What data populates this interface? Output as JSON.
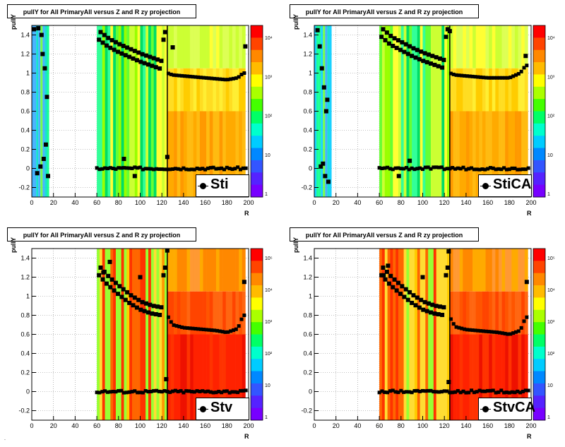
{
  "footer_text": ".",
  "chart_data": [
    {
      "type": "scatter",
      "title": "pullY for All PrimaryAll versus Z and R zy projection",
      "xlabel": "R",
      "ylabel": "pullY",
      "legend": "Sti",
      "xlim": [
        0,
        200
      ],
      "ylim": [
        -0.3,
        1.5
      ],
      "xticks": [
        "0",
        "20",
        "40",
        "60",
        "80",
        "100",
        "120",
        "140",
        "160",
        "180",
        "200"
      ],
      "yticks": [
        "-0.2",
        "0",
        "0.2",
        "0.4",
        "0.6",
        "0.8",
        "1",
        "1.2",
        "1.4"
      ],
      "palette_labels": [
        "1",
        "10",
        "10²",
        "10³",
        "10⁴"
      ],
      "tpc_band": [
        {
          "x": 125,
          "y": 1.0
        },
        {
          "x": 130,
          "y": 0.98
        },
        {
          "x": 140,
          "y": 0.97
        },
        {
          "x": 150,
          "y": 0.96
        },
        {
          "x": 160,
          "y": 0.95
        },
        {
          "x": 170,
          "y": 0.94
        },
        {
          "x": 180,
          "y": 0.93
        },
        {
          "x": 190,
          "y": 0.95
        },
        {
          "x": 195,
          "y": 1.0
        }
      ],
      "upper_band": [
        {
          "x": 62,
          "y": 1.35
        },
        {
          "x": 70,
          "y": 1.28
        },
        {
          "x": 80,
          "y": 1.22
        },
        {
          "x": 90,
          "y": 1.17
        },
        {
          "x": 100,
          "y": 1.12
        },
        {
          "x": 110,
          "y": 1.08
        },
        {
          "x": 120,
          "y": 1.04
        }
      ],
      "points": [
        {
          "x": 2,
          "y": 1.46
        },
        {
          "x": 6,
          "y": 1.47
        },
        {
          "x": 9,
          "y": 1.4
        },
        {
          "x": 10,
          "y": 1.2
        },
        {
          "x": 12,
          "y": 1.05
        },
        {
          "x": 14,
          "y": 0.75
        },
        {
          "x": 13,
          "y": 0.25
        },
        {
          "x": 11,
          "y": 0.1
        },
        {
          "x": 8,
          "y": 0.02
        },
        {
          "x": 5,
          "y": -0.05
        },
        {
          "x": 15,
          "y": -0.08
        },
        {
          "x": 130,
          "y": 1.27
        },
        {
          "x": 197,
          "y": 1.28
        },
        {
          "x": 125,
          "y": 0.12
        },
        {
          "x": 85,
          "y": 0.1
        },
        {
          "x": 95,
          "y": -0.08
        }
      ],
      "zero_line": 0.0
    },
    {
      "type": "scatter",
      "title": "pullY for All PrimaryAll versus Z and R zy projection",
      "xlabel": "R",
      "ylabel": "pullY",
      "legend": "StiCA",
      "xlim": [
        0,
        200
      ],
      "ylim": [
        -0.3,
        1.5
      ],
      "xticks": [
        "0",
        "20",
        "40",
        "60",
        "80",
        "100",
        "120",
        "140",
        "160",
        "180",
        "200"
      ],
      "yticks": [
        "-0.2",
        "0",
        "0.2",
        "0.4",
        "0.6",
        "0.8",
        "1",
        "1.2",
        "1.4"
      ],
      "palette_labels": [
        "1",
        "10",
        "10²",
        "10³",
        "10⁴"
      ],
      "tpc_band": [
        {
          "x": 125,
          "y": 1.0
        },
        {
          "x": 130,
          "y": 0.98
        },
        {
          "x": 140,
          "y": 0.97
        },
        {
          "x": 150,
          "y": 0.96
        },
        {
          "x": 160,
          "y": 0.95
        },
        {
          "x": 170,
          "y": 0.95
        },
        {
          "x": 180,
          "y": 0.95
        },
        {
          "x": 190,
          "y": 1.0
        },
        {
          "x": 195,
          "y": 1.08
        }
      ],
      "upper_band": [
        {
          "x": 62,
          "y": 1.38
        },
        {
          "x": 70,
          "y": 1.3
        },
        {
          "x": 80,
          "y": 1.24
        },
        {
          "x": 90,
          "y": 1.18
        },
        {
          "x": 100,
          "y": 1.13
        },
        {
          "x": 110,
          "y": 1.09
        },
        {
          "x": 120,
          "y": 1.05
        }
      ],
      "points": [
        {
          "x": 3,
          "y": 1.45
        },
        {
          "x": 5,
          "y": 1.28
        },
        {
          "x": 7,
          "y": 1.05
        },
        {
          "x": 9,
          "y": 0.85
        },
        {
          "x": 11,
          "y": 0.6
        },
        {
          "x": 12,
          "y": 0.72
        },
        {
          "x": 8,
          "y": 0.05
        },
        {
          "x": 10,
          "y": -0.08
        },
        {
          "x": 13,
          "y": -0.14
        },
        {
          "x": 6,
          "y": 0.02
        },
        {
          "x": 195,
          "y": 1.18
        },
        {
          "x": 125,
          "y": 1.44
        },
        {
          "x": 88,
          "y": 0.08
        },
        {
          "x": 78,
          "y": -0.08
        }
      ],
      "zero_line": 0.0
    },
    {
      "type": "scatter",
      "title": "pullY for All PrimaryAll versus Z and R zy projection",
      "xlabel": "R",
      "ylabel": "pullY",
      "legend": "Stv",
      "xlim": [
        0,
        200
      ],
      "ylim": [
        -0.3,
        1.5
      ],
      "xticks": [
        "0",
        "20",
        "40",
        "60",
        "80",
        "100",
        "120",
        "140",
        "160",
        "180",
        "200"
      ],
      "yticks": [
        "-0.2",
        "0",
        "0.2",
        "0.4",
        "0.6",
        "0.8",
        "1",
        "1.2",
        "1.4"
      ],
      "palette_labels": [
        "1",
        "10",
        "10²",
        "10³",
        "10⁴",
        "10⁵"
      ],
      "tpc_band": [
        {
          "x": 125,
          "y": 0.8
        },
        {
          "x": 130,
          "y": 0.7
        },
        {
          "x": 140,
          "y": 0.67
        },
        {
          "x": 150,
          "y": 0.66
        },
        {
          "x": 160,
          "y": 0.65
        },
        {
          "x": 170,
          "y": 0.64
        },
        {
          "x": 180,
          "y": 0.62
        },
        {
          "x": 190,
          "y": 0.66
        },
        {
          "x": 195,
          "y": 0.8
        }
      ],
      "upper_band": [
        {
          "x": 62,
          "y": 1.22
        },
        {
          "x": 70,
          "y": 1.12
        },
        {
          "x": 80,
          "y": 1.02
        },
        {
          "x": 90,
          "y": 0.93
        },
        {
          "x": 100,
          "y": 0.86
        },
        {
          "x": 110,
          "y": 0.82
        },
        {
          "x": 120,
          "y": 0.8
        }
      ],
      "points": [
        {
          "x": 72,
          "y": 1.36
        },
        {
          "x": 100,
          "y": 1.2
        },
        {
          "x": 125,
          "y": 1.48
        },
        {
          "x": 196,
          "y": 1.15
        },
        {
          "x": 124,
          "y": 0.13
        },
        {
          "x": 66,
          "y": 1.25
        }
      ],
      "zero_line": 0.0
    },
    {
      "type": "scatter",
      "title": "pullY for All PrimaryAll versus Z and R zy projection",
      "xlabel": "R",
      "ylabel": "pullY",
      "legend": "StvCA",
      "xlim": [
        0,
        200
      ],
      "ylim": [
        -0.3,
        1.5
      ],
      "xticks": [
        "0",
        "20",
        "40",
        "60",
        "80",
        "100",
        "120",
        "140",
        "160",
        "180",
        "200"
      ],
      "yticks": [
        "-0.2",
        "0",
        "0.2",
        "0.4",
        "0.6",
        "0.8",
        "1",
        "1.2",
        "1.4"
      ],
      "palette_labels": [
        "1",
        "10",
        "10²",
        "10³",
        "10⁴",
        "10⁵"
      ],
      "tpc_band": [
        {
          "x": 125,
          "y": 0.78
        },
        {
          "x": 130,
          "y": 0.68
        },
        {
          "x": 140,
          "y": 0.65
        },
        {
          "x": 150,
          "y": 0.64
        },
        {
          "x": 160,
          "y": 0.63
        },
        {
          "x": 170,
          "y": 0.62
        },
        {
          "x": 180,
          "y": 0.6
        },
        {
          "x": 190,
          "y": 0.64
        },
        {
          "x": 195,
          "y": 0.78
        }
      ],
      "upper_band": [
        {
          "x": 62,
          "y": 1.22
        },
        {
          "x": 70,
          "y": 1.12
        },
        {
          "x": 80,
          "y": 1.02
        },
        {
          "x": 90,
          "y": 0.93
        },
        {
          "x": 100,
          "y": 0.86
        },
        {
          "x": 110,
          "y": 0.82
        },
        {
          "x": 120,
          "y": 0.8
        }
      ],
      "points": [
        {
          "x": 68,
          "y": 1.32
        },
        {
          "x": 100,
          "y": 1.2
        },
        {
          "x": 124,
          "y": 1.47
        },
        {
          "x": 196,
          "y": 1.15
        },
        {
          "x": 124,
          "y": 0.1
        },
        {
          "x": 64,
          "y": 1.22
        }
      ],
      "zero_line": 0.0
    }
  ]
}
